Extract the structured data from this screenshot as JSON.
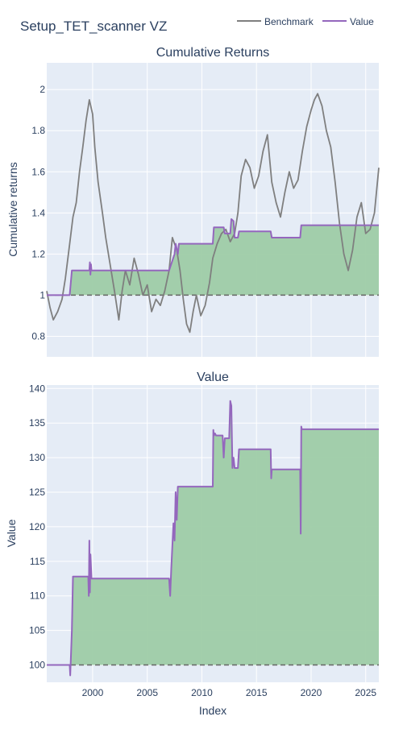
{
  "page": {
    "title": "Setup_TET_scanner VZ"
  },
  "legend": {
    "items": [
      {
        "label": "Benchmark",
        "color": "#7f7f7f"
      },
      {
        "label": "Value",
        "color": "#9467bd"
      }
    ]
  },
  "colors": {
    "plot_bg": "#e5ecf6",
    "grid": "#ffffff",
    "benchmark": "#7f7f7f",
    "value": "#9467bd",
    "fill": "#9ecca6",
    "fill_overlap": "#5a7f59",
    "baseline": "#666666",
    "text": "#2a3f5f"
  },
  "chart_data": [
    {
      "type": "line",
      "title": "Cumulative Returns",
      "xlabel": "",
      "ylabel": "Cumulative returns",
      "xlim": [
        1995.8,
        2026.2
      ],
      "ylim": [
        0.7,
        2.13
      ],
      "x_ticks": [
        2000,
        2005,
        2010,
        2015,
        2020,
        2025
      ],
      "y_ticks": [
        0.8,
        1,
        1.2,
        1.4,
        1.6,
        1.8,
        2
      ],
      "y_tick_labels": [
        "0.8",
        "1",
        "1.2",
        "1.4",
        "1.6",
        "1.8",
        "2"
      ],
      "baseline": 1.0,
      "series": [
        {
          "name": "Benchmark",
          "x": [
            1995.8,
            1996.1,
            1996.4,
            1996.8,
            1997.2,
            1997.5,
            1997.9,
            1998.2,
            1998.5,
            1998.8,
            1999.1,
            1999.4,
            1999.7,
            2000.0,
            2000.2,
            2000.5,
            2000.9,
            2001.2,
            2001.6,
            2002.0,
            2002.4,
            2002.7,
            2003.0,
            2003.4,
            2003.8,
            2004.2,
            2004.6,
            2005.0,
            2005.4,
            2005.8,
            2006.2,
            2006.6,
            2007.0,
            2007.3,
            2007.7,
            2008.0,
            2008.3,
            2008.6,
            2008.9,
            2009.2,
            2009.5,
            2009.9,
            2010.3,
            2010.7,
            2011.0,
            2011.4,
            2011.8,
            2012.2,
            2012.6,
            2013.0,
            2013.3,
            2013.6,
            2014.0,
            2014.4,
            2014.8,
            2015.2,
            2015.6,
            2016.0,
            2016.4,
            2016.8,
            2017.2,
            2017.6,
            2018.0,
            2018.4,
            2018.8,
            2019.2,
            2019.6,
            2020.0,
            2020.3,
            2020.6,
            2021.0,
            2021.4,
            2021.8,
            2022.2,
            2022.6,
            2023.0,
            2023.4,
            2023.8,
            2024.2,
            2024.6,
            2025.0,
            2025.4,
            2025.8,
            2026.2
          ],
          "values": [
            1.02,
            0.94,
            0.88,
            0.92,
            0.98,
            1.08,
            1.25,
            1.38,
            1.45,
            1.6,
            1.72,
            1.85,
            1.95,
            1.88,
            1.72,
            1.55,
            1.4,
            1.28,
            1.15,
            1.02,
            0.88,
            1.02,
            1.12,
            1.05,
            1.18,
            1.1,
            1.0,
            1.05,
            0.92,
            0.98,
            0.95,
            1.02,
            1.12,
            1.28,
            1.22,
            1.12,
            0.98,
            0.86,
            0.82,
            0.92,
            1.0,
            0.9,
            0.95,
            1.06,
            1.18,
            1.25,
            1.3,
            1.32,
            1.26,
            1.3,
            1.4,
            1.58,
            1.66,
            1.62,
            1.52,
            1.58,
            1.7,
            1.78,
            1.55,
            1.45,
            1.38,
            1.5,
            1.6,
            1.52,
            1.56,
            1.7,
            1.82,
            1.9,
            1.95,
            1.98,
            1.92,
            1.8,
            1.72,
            1.55,
            1.35,
            1.2,
            1.12,
            1.22,
            1.38,
            1.45,
            1.3,
            1.32,
            1.4,
            1.62
          ]
        },
        {
          "name": "Value",
          "x": [
            1995.8,
            1997.9,
            1998.1,
            1999.7,
            1999.75,
            1999.8,
            1999.85,
            1999.9,
            2007.0,
            2007.5,
            2007.6,
            2007.8,
            2007.9,
            2011.0,
            2011.1,
            2012.0,
            2012.1,
            2012.6,
            2012.7,
            2012.9,
            2013.0,
            2013.3,
            2013.4,
            2016.3,
            2016.4,
            2019.0,
            2019.1,
            2026.2
          ],
          "values": [
            1.0,
            1.0,
            1.12,
            1.12,
            1.16,
            1.1,
            1.15,
            1.12,
            1.12,
            1.2,
            1.25,
            1.2,
            1.25,
            1.25,
            1.33,
            1.33,
            1.3,
            1.3,
            1.37,
            1.36,
            1.28,
            1.28,
            1.31,
            1.31,
            1.28,
            1.28,
            1.34,
            1.34
          ]
        }
      ]
    },
    {
      "type": "line",
      "title": "Value",
      "xlabel": "Index",
      "ylabel": "Value",
      "xlim": [
        1995.8,
        2026.2
      ],
      "ylim": [
        97.5,
        140.5
      ],
      "x_ticks": [
        2000,
        2005,
        2010,
        2015,
        2020,
        2025
      ],
      "y_ticks": [
        100,
        105,
        110,
        115,
        120,
        125,
        130,
        135,
        140
      ],
      "baseline": 100,
      "series": [
        {
          "name": "Value",
          "x": [
            1995.8,
            1997.9,
            1997.95,
            1998.1,
            1998.2,
            1999.6,
            1999.65,
            1999.7,
            1999.75,
            1999.8,
            1999.9,
            2007.0,
            2007.1,
            2007.2,
            2007.4,
            2007.5,
            2007.6,
            2007.7,
            2007.8,
            2007.9,
            2011.0,
            2011.05,
            2011.1,
            2011.2,
            2011.3,
            2011.9,
            2012.0,
            2012.1,
            2012.5,
            2012.6,
            2012.7,
            2012.8,
            2012.9,
            2013.0,
            2013.3,
            2013.4,
            2016.3,
            2016.35,
            2016.4,
            2019.0,
            2019.05,
            2019.1,
            2019.15,
            2026.2
          ],
          "values": [
            100.0,
            100.0,
            98.5,
            105.0,
            112.8,
            112.8,
            110.0,
            118.0,
            110.5,
            116.0,
            112.5,
            112.5,
            110.0,
            114.0,
            120.5,
            118.0,
            125.0,
            121.0,
            125.8,
            125.8,
            125.8,
            134.0,
            133.2,
            133.5,
            133.2,
            133.2,
            130.0,
            132.8,
            132.8,
            138.2,
            137.5,
            128.5,
            130.0,
            128.5,
            128.5,
            131.2,
            131.2,
            127.0,
            128.3,
            128.3,
            119.0,
            134.5,
            134.1,
            134.1
          ]
        }
      ]
    }
  ]
}
